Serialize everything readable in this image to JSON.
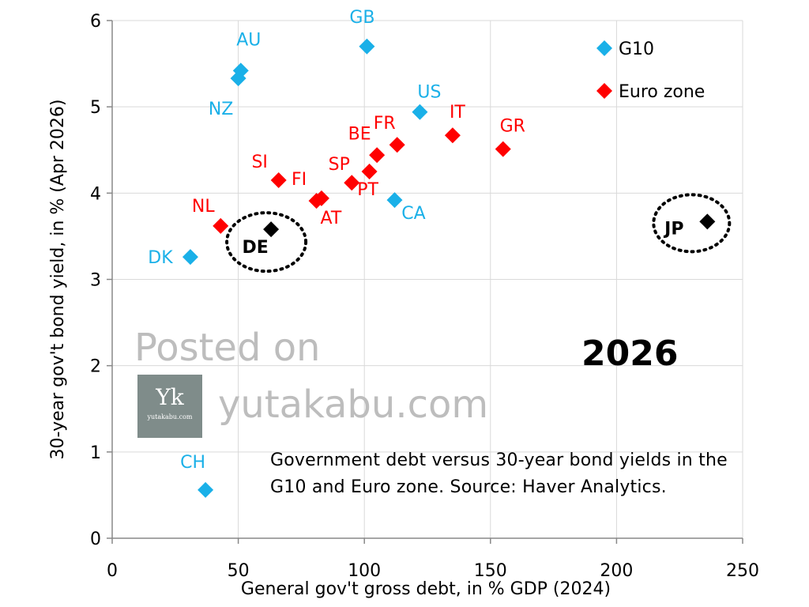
{
  "chart_data": {
    "type": "scatter",
    "xlabel": "General gov't gross debt, in % GDP (2024)",
    "ylabel": "30-year gov't bond yield, in % (Apr 2026)",
    "xlim": [
      0,
      250
    ],
    "ylim": [
      0,
      6
    ],
    "x_ticks": [
      0,
      50,
      100,
      150,
      200,
      250
    ],
    "y_ticks": [
      0,
      1,
      2,
      3,
      4,
      5,
      6
    ],
    "grid": true,
    "legend_position": "top-right",
    "colors": {
      "G10": "#1ab0e8",
      "Euro zone": "#ff0000",
      "highlight": "#000000"
    },
    "series": [
      {
        "name": "G10",
        "points": [
          {
            "label": "GB",
            "x": 101,
            "y": 5.7
          },
          {
            "label": "AU",
            "x": 51,
            "y": 5.42
          },
          {
            "label": "NZ",
            "x": 50,
            "y": 5.33
          },
          {
            "label": "US",
            "x": 122,
            "y": 4.94
          },
          {
            "label": "CA",
            "x": 112,
            "y": 3.92
          },
          {
            "label": "DK",
            "x": 31,
            "y": 3.26
          },
          {
            "label": "CH",
            "x": 37,
            "y": 0.56
          }
        ]
      },
      {
        "name": "Euro zone",
        "points": [
          {
            "label": "IT",
            "x": 135,
            "y": 4.67
          },
          {
            "label": "GR",
            "x": 155,
            "y": 4.51
          },
          {
            "label": "FR",
            "x": 113,
            "y": 4.56
          },
          {
            "label": "BE",
            "x": 105,
            "y": 4.44
          },
          {
            "label": "SP",
            "x": 95,
            "y": 4.12
          },
          {
            "label": "PT",
            "x": 102,
            "y": 4.25
          },
          {
            "label": "SI",
            "x": 66,
            "y": 4.15
          },
          {
            "label": "FI",
            "x": 81,
            "y": 3.91
          },
          {
            "label": "AT",
            "x": 83,
            "y": 3.94
          },
          {
            "label": "NL",
            "x": 43,
            "y": 3.62
          }
        ]
      },
      {
        "points": [
          {
            "label": "DE",
            "x": 63,
            "y": 3.58
          },
          {
            "label": "JP",
            "x": 236,
            "y": 3.67
          }
        ]
      }
    ]
  },
  "annotations": {
    "year": "2026",
    "watermark_line1": "Posted on",
    "watermark_line2": "yutakabu.com",
    "logo_mark": "Yk",
    "logo_sub": "yutakabu.com",
    "note": "Government debt versus 30-year bond yields in the G10 and Euro zone. Source: Haver Analytics."
  }
}
